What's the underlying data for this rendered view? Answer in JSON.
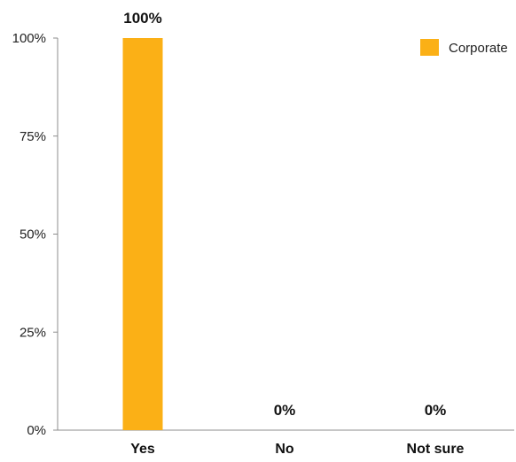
{
  "chart_data": {
    "type": "bar",
    "categories": [
      "Yes",
      "No",
      "Not sure"
    ],
    "series": [
      {
        "name": "Corporate",
        "values": [
          100,
          0,
          0
        ],
        "color": "#FBB016"
      }
    ],
    "data_labels": [
      "100%",
      "0%",
      "0%"
    ],
    "y_ticks": [
      "0%",
      "25%",
      "50%",
      "75%",
      "100%"
    ],
    "ylim": [
      0,
      100
    ],
    "grid": false,
    "legend": {
      "position": "top-right",
      "entries": [
        "Corporate"
      ]
    },
    "title": "",
    "xlabel": "",
    "ylabel": ""
  }
}
